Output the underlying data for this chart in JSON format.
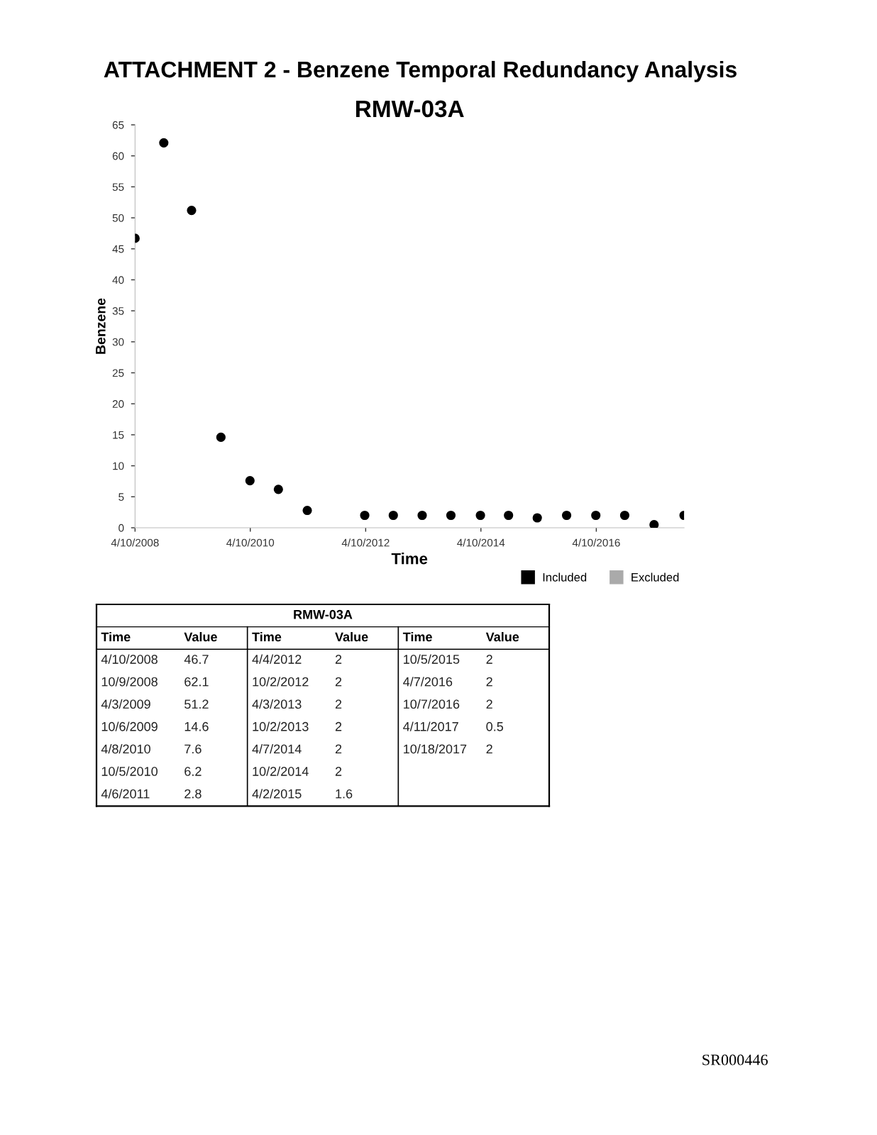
{
  "chart_data": [
    {
      "type": "scatter",
      "title": "ATTACHMENT 2 - Benzene Temporal Redundancy Analysis",
      "subtitle": "RMW-03A",
      "xlabel": "Time",
      "ylabel": "Benzene",
      "x": [
        "2008-04-10",
        "2008-10-09",
        "2009-04-03",
        "2009-10-06",
        "2010-04-08",
        "2010-10-05",
        "2011-04-06",
        "2012-04-04",
        "2012-10-02",
        "2013-04-03",
        "2013-10-02",
        "2014-04-07",
        "2014-10-02",
        "2015-04-02",
        "2015-10-05",
        "2016-04-07",
        "2016-10-07",
        "2017-04-11",
        "2017-10-18"
      ],
      "series": [
        {
          "name": "Included",
          "color": "#000000",
          "values": [
            46.7,
            62.1,
            51.2,
            14.6,
            7.6,
            6.2,
            2.8,
            2,
            2,
            2,
            2,
            2,
            2,
            1.6,
            2,
            2,
            2,
            0.5,
            2
          ]
        },
        {
          "name": "Excluded",
          "color": "#aaaaaa",
          "values": [
            null,
            null,
            null,
            null,
            null,
            null,
            null,
            null,
            null,
            null,
            null,
            null,
            null,
            null,
            null,
            null,
            null,
            null,
            null
          ]
        }
      ],
      "xlim": [
        "2008-04-10",
        "2017-10-18"
      ],
      "xticks": [
        {
          "value": "2008-04-10",
          "label": "4/10/2008"
        },
        {
          "value": "2010-04-10",
          "label": "4/10/2010"
        },
        {
          "value": "2012-04-10",
          "label": "4/10/2012"
        },
        {
          "value": "2014-04-10",
          "label": "4/10/2014"
        },
        {
          "value": "2016-04-10",
          "label": "4/10/2016"
        }
      ],
      "ylim": [
        0,
        65
      ],
      "yticks": [
        0,
        5,
        10,
        15,
        20,
        25,
        30,
        35,
        40,
        45,
        50,
        55,
        60,
        65
      ],
      "marker": "circle",
      "legend": "bottom right",
      "annotations": [
        "SR000446"
      ]
    },
    {
      "type": "other",
      "title": "RMW-03A",
      "xlabel": "Time",
      "ylabel": "Value",
      "categories": [
        "4/10/2008",
        "10/9/2008",
        "4/3/2009",
        "10/6/2009",
        "4/8/2010",
        "10/5/2010",
        "4/6/2011",
        "4/4/2012",
        "10/2/2012",
        "4/3/2013",
        "10/2/2013",
        "4/7/2014",
        "10/2/2014",
        "4/2/2015",
        "10/5/2015",
        "4/7/2016",
        "10/7/2016",
        "4/11/2017",
        "10/18/2017"
      ],
      "values": [
        46.7,
        62.1,
        51.2,
        14.6,
        7.6,
        6.2,
        2.8,
        2,
        2,
        2,
        2,
        2,
        2,
        1.6,
        2,
        2,
        2,
        0.5,
        2
      ],
      "data_labels": true
    }
  ]
}
